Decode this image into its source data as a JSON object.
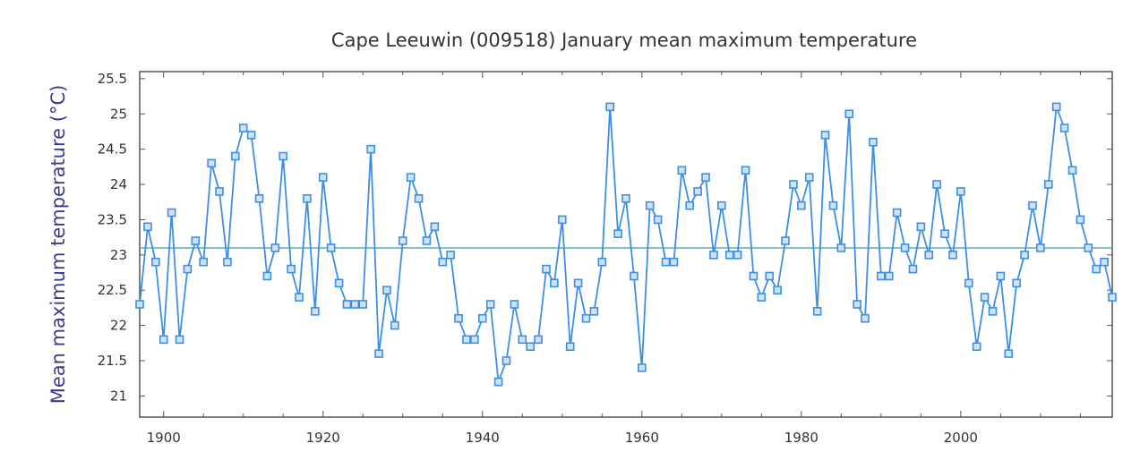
{
  "chart_data": {
    "type": "line",
    "title": "Cape Leeuwin (009518) January mean maximum temperature",
    "xlabel": "",
    "ylabel": "Mean maximum temperature (°C)",
    "xlim": [
      1897,
      2019
    ],
    "ylim": [
      20.7,
      25.6
    ],
    "x_ticks": [
      1900,
      1920,
      1940,
      1960,
      1980,
      2000
    ],
    "y_ticks": [
      21,
      21.5,
      22,
      22.5,
      23,
      23.5,
      24,
      24.5,
      25,
      25.5
    ],
    "grid": false,
    "legend": "none",
    "mean_line": 23.1,
    "colors": {
      "series": "#3d8fe6",
      "marker_fill": "#cfe3fb",
      "mean_line": "#5aa9b8",
      "axis": "#555555"
    },
    "series": [
      {
        "x": [
          1897,
          1898,
          1899,
          1900,
          1901,
          1902,
          1903,
          1904,
          1905,
          1906,
          1907,
          1908,
          1909,
          1910,
          1911,
          1912,
          1913,
          1914,
          1915,
          1916,
          1917,
          1918,
          1919,
          1920,
          1921,
          1922,
          1923,
          1924,
          1925,
          1926,
          1927,
          1928,
          1929,
          1930,
          1931,
          1932,
          1933,
          1934,
          1935,
          1936,
          1937,
          1938,
          1939,
          1940,
          1941,
          1942,
          1943,
          1944,
          1945,
          1946,
          1947,
          1948,
          1949,
          1950,
          1951,
          1952,
          1953,
          1954,
          1955,
          1956,
          1957,
          1958,
          1959,
          1960,
          1961,
          1962,
          1963,
          1964,
          1965,
          1966,
          1967,
          1968,
          1969,
          1970,
          1971,
          1972,
          1973,
          1974,
          1975,
          1976,
          1977,
          1978,
          1979,
          1980,
          1981,
          1982,
          1983,
          1984,
          1985,
          1986,
          1987,
          1988,
          1989,
          1990,
          1991,
          1992,
          1993,
          1994,
          1995,
          1996,
          1997,
          1998,
          1999,
          2000,
          2001,
          2002,
          2003,
          2004,
          2005,
          2006,
          2007,
          2008,
          2009,
          2010,
          2011,
          2012,
          2013,
          2014,
          2015,
          2016,
          2017,
          2018,
          2019
        ],
        "values": [
          22.3,
          23.4,
          22.9,
          21.8,
          23.6,
          21.8,
          22.8,
          23.2,
          22.9,
          24.3,
          23.9,
          22.9,
          24.4,
          24.8,
          24.7,
          23.8,
          22.7,
          23.1,
          24.4,
          22.8,
          22.4,
          23.8,
          22.2,
          24.1,
          23.1,
          22.6,
          22.3,
          22.3,
          22.3,
          24.5,
          21.6,
          22.5,
          22.0,
          23.2,
          24.1,
          23.8,
          23.2,
          23.4,
          22.9,
          23.0,
          22.1,
          21.8,
          21.8,
          22.1,
          22.3,
          21.2,
          21.5,
          22.3,
          21.8,
          21.7,
          21.8,
          22.8,
          22.6,
          23.5,
          21.7,
          22.6,
          22.1,
          22.2,
          22.9,
          25.1,
          23.3,
          23.8,
          22.7,
          21.4,
          23.7,
          23.5,
          22.9,
          22.9,
          24.2,
          23.7,
          23.9,
          24.1,
          23.0,
          23.7,
          23.0,
          23.0,
          24.2,
          22.7,
          22.4,
          22.7,
          22.5,
          23.2,
          24.0,
          23.7,
          24.1,
          22.2,
          24.7,
          23.7,
          23.1,
          25.0,
          22.3,
          22.1,
          24.6,
          22.7,
          22.7,
          23.6,
          23.1,
          22.8,
          23.4,
          23.0,
          24.0,
          23.3,
          23.0,
          23.9,
          22.6,
          21.7,
          22.4,
          22.2,
          22.7,
          21.6,
          22.6,
          23.0,
          23.7,
          23.1,
          24.0,
          25.1,
          24.8,
          24.2,
          23.5,
          23.1,
          22.8,
          22.9,
          22.4
        ]
      }
    ]
  }
}
